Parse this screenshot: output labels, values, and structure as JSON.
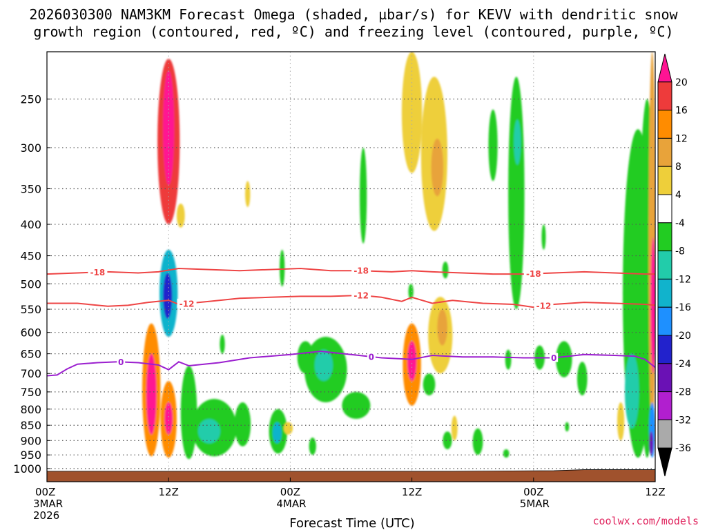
{
  "title_line1": "2026030300 NAM3KM Forecast Omega (shaded, µbar/s) for KEVV with dendritic snow",
  "title_line2": "growth region (contoured, red, ºC) and freezing level (contoured, purple, ºC)",
  "credit": "coolwx.com/models",
  "colors": {
    "dgz": "#ee4444",
    "freezing": "#9b1fcf",
    "terrain": "#a0522d"
  },
  "chart_data": {
    "type": "heatmap",
    "title": "2026030300 NAM3KM Forecast Omega (shaded, µbar/s) for KEVV with dendritic snow growth region (contoured, red, ºC) and freezing level (contoured, purple, ºC)",
    "xlabel": "Forecast Time (UTC)",
    "ylabel": "",
    "x_unit": "forecast hour",
    "xlim": [
      0,
      60
    ],
    "ylim": [
      1050,
      200
    ],
    "y_scale": "log-pressure (hPa)",
    "y_ticks": [
      250,
      300,
      350,
      400,
      450,
      500,
      550,
      600,
      650,
      700,
      750,
      800,
      850,
      900,
      950,
      1000
    ],
    "x_ticks": [
      {
        "hour": 0,
        "label": "00Z",
        "date": "3MAR",
        "year": "2026"
      },
      {
        "hour": 12,
        "label": "12Z",
        "date": "",
        "year": ""
      },
      {
        "hour": 24,
        "label": "00Z",
        "date": "4MAR",
        "year": ""
      },
      {
        "hour": 36,
        "label": "12Z",
        "date": "",
        "year": ""
      },
      {
        "hour": 48,
        "label": "00Z",
        "date": "5MAR",
        "year": ""
      },
      {
        "hour": 60,
        "label": "12Z",
        "date": "",
        "year": ""
      }
    ],
    "grid": true,
    "colorbar": {
      "position": "right",
      "labels": [
        "20",
        "16",
        "12",
        "8",
        "4",
        "-4",
        "-8",
        "-12",
        "-16",
        "-20",
        "-24",
        "-28",
        "-32",
        "-36"
      ],
      "colors": [
        "#ff1493",
        "#ee3b3b",
        "#ff8c00",
        "#e8a33a",
        "#eecf3a",
        "#ffffff",
        "#22cc22",
        "#22ccaa",
        "#11b3cc",
        "#1e90ff",
        "#2222cc",
        "#6a11b5",
        "#b11fcf",
        "#aaaaaa",
        "#000000"
      ]
    },
    "contours": [
      {
        "label": "-18",
        "color": "#ee4444",
        "kind": "dendritic",
        "points": [
          [
            0,
            482
          ],
          [
            3,
            480
          ],
          [
            6,
            478
          ],
          [
            9,
            480
          ],
          [
            11,
            478
          ],
          [
            13,
            472
          ],
          [
            16,
            474
          ],
          [
            19,
            476
          ],
          [
            22,
            474
          ],
          [
            25,
            472
          ],
          [
            28,
            476
          ],
          [
            31,
            476
          ],
          [
            34,
            478
          ],
          [
            36,
            476
          ],
          [
            38,
            478
          ],
          [
            41,
            480
          ],
          [
            44,
            482
          ],
          [
            47,
            482
          ],
          [
            50,
            480
          ],
          [
            53,
            478
          ],
          [
            56,
            480
          ],
          [
            59,
            482
          ],
          [
            60,
            482
          ]
        ],
        "label_hours": [
          5,
          31,
          48
        ]
      },
      {
        "label": "-12",
        "color": "#ee4444",
        "kind": "dendritic",
        "points": [
          [
            0,
            538
          ],
          [
            3,
            538
          ],
          [
            6,
            544
          ],
          [
            8,
            542
          ],
          [
            10,
            536
          ],
          [
            12,
            532
          ],
          [
            13,
            540
          ],
          [
            16,
            534
          ],
          [
            19,
            528
          ],
          [
            22,
            526
          ],
          [
            25,
            524
          ],
          [
            28,
            524
          ],
          [
            31,
            522
          ],
          [
            33,
            526
          ],
          [
            35,
            534
          ],
          [
            36,
            526
          ],
          [
            38,
            538
          ],
          [
            40,
            532
          ],
          [
            43,
            538
          ],
          [
            46,
            540
          ],
          [
            48,
            546
          ],
          [
            50,
            540
          ],
          [
            53,
            536
          ],
          [
            56,
            538
          ],
          [
            59,
            540
          ],
          [
            60,
            542
          ]
        ],
        "label_hours": [
          13.8,
          31,
          49
        ]
      },
      {
        "label": "0",
        "color": "#9b1fcf",
        "kind": "freezing",
        "points": [
          [
            0,
            706
          ],
          [
            1,
            704
          ],
          [
            2,
            688
          ],
          [
            3,
            676
          ],
          [
            5,
            672
          ],
          [
            7,
            670
          ],
          [
            9,
            672
          ],
          [
            11,
            678
          ],
          [
            12,
            690
          ],
          [
            13,
            670
          ],
          [
            14,
            680
          ],
          [
            17,
            672
          ],
          [
            20,
            660
          ],
          [
            24,
            652
          ],
          [
            27,
            644
          ],
          [
            30,
            652
          ],
          [
            33,
            660
          ],
          [
            36,
            664
          ],
          [
            38,
            654
          ],
          [
            41,
            658
          ],
          [
            44,
            658
          ],
          [
            47,
            660
          ],
          [
            50,
            660
          ],
          [
            53,
            652
          ],
          [
            56,
            654
          ],
          [
            58,
            656
          ],
          [
            59,
            664
          ],
          [
            60,
            684
          ]
        ],
        "label_hours": [
          7.3,
          32,
          50
        ]
      }
    ],
    "omega_blobs": [
      {
        "h": 12,
        "p1": 215,
        "p2": 400,
        "w": 1.1,
        "v": 16
      },
      {
        "h": 12,
        "p1": 225,
        "p2": 345,
        "w": 0.55,
        "v": 20
      },
      {
        "h": 13.2,
        "p1": 370,
        "p2": 405,
        "w": 0.4,
        "v": 4
      },
      {
        "h": 12,
        "p1": 440,
        "p2": 610,
        "w": 0.9,
        "v": -16
      },
      {
        "h": 11.9,
        "p1": 480,
        "p2": 570,
        "w": 0.45,
        "v": -24
      },
      {
        "h": 10.3,
        "p1": 580,
        "p2": 955,
        "w": 0.9,
        "v": 12
      },
      {
        "h": 10.3,
        "p1": 650,
        "p2": 880,
        "w": 0.5,
        "v": 20
      },
      {
        "h": 12,
        "p1": 720,
        "p2": 960,
        "w": 0.8,
        "v": 12
      },
      {
        "h": 12,
        "p1": 780,
        "p2": 880,
        "w": 0.4,
        "v": 20
      },
      {
        "h": 14,
        "p1": 680,
        "p2": 965,
        "w": 0.8,
        "v": -8
      },
      {
        "h": 16.5,
        "p1": 770,
        "p2": 955,
        "w": 2.2,
        "v": -8
      },
      {
        "h": 16,
        "p1": 830,
        "p2": 910,
        "w": 1.1,
        "v": -12
      },
      {
        "h": 19.3,
        "p1": 780,
        "p2": 920,
        "w": 0.8,
        "v": -8
      },
      {
        "h": 22.8,
        "p1": 800,
        "p2": 945,
        "w": 0.9,
        "v": -8
      },
      {
        "h": 22.7,
        "p1": 840,
        "p2": 910,
        "w": 0.45,
        "v": -16
      },
      {
        "h": 23.8,
        "p1": 840,
        "p2": 880,
        "w": 0.45,
        "v": 4
      },
      {
        "h": 26.2,
        "p1": 890,
        "p2": 950,
        "w": 0.35,
        "v": -8
      },
      {
        "h": 25.5,
        "p1": 620,
        "p2": 700,
        "w": 0.8,
        "v": -8
      },
      {
        "h": 27.5,
        "p1": 610,
        "p2": 780,
        "w": 2.1,
        "v": -8
      },
      {
        "h": 27.3,
        "p1": 640,
        "p2": 720,
        "w": 0.9,
        "v": -12
      },
      {
        "h": 30.5,
        "p1": 750,
        "p2": 830,
        "w": 1.4,
        "v": -8
      },
      {
        "h": 23.2,
        "p1": 440,
        "p2": 505,
        "w": 0.25,
        "v": -8
      },
      {
        "h": 17.3,
        "p1": 605,
        "p2": 650,
        "w": 0.25,
        "v": -8
      },
      {
        "h": 19.8,
        "p1": 340,
        "p2": 375,
        "w": 0.25,
        "v": 4
      },
      {
        "h": 31.2,
        "p1": 300,
        "p2": 430,
        "w": 0.35,
        "v": -8
      },
      {
        "h": 36.0,
        "p1": 200,
        "p2": 330,
        "w": 1.0,
        "v": 4
      },
      {
        "h": 38.2,
        "p1": 230,
        "p2": 410,
        "w": 1.3,
        "v": 4
      },
      {
        "h": 38.5,
        "p1": 290,
        "p2": 360,
        "w": 0.6,
        "v": 8
      },
      {
        "h": 36,
        "p1": 580,
        "p2": 790,
        "w": 0.9,
        "v": 12
      },
      {
        "h": 36,
        "p1": 620,
        "p2": 720,
        "w": 0.45,
        "v": 20
      },
      {
        "h": 38.8,
        "p1": 525,
        "p2": 700,
        "w": 1.2,
        "v": 4
      },
      {
        "h": 39.0,
        "p1": 550,
        "p2": 630,
        "w": 0.5,
        "v": 8
      },
      {
        "h": 40.2,
        "p1": 820,
        "p2": 900,
        "w": 0.3,
        "v": 4
      },
      {
        "h": 37.7,
        "p1": 700,
        "p2": 760,
        "w": 0.6,
        "v": -8
      },
      {
        "h": 39.5,
        "p1": 870,
        "p2": 930,
        "w": 0.45,
        "v": -8
      },
      {
        "h": 39.3,
        "p1": 460,
        "p2": 490,
        "w": 0.3,
        "v": -8
      },
      {
        "h": 35.9,
        "p1": 500,
        "p2": 530,
        "w": 0.25,
        "v": -8
      },
      {
        "h": 46.3,
        "p1": 230,
        "p2": 550,
        "w": 0.8,
        "v": -8
      },
      {
        "h": 46.4,
        "p1": 270,
        "p2": 320,
        "w": 0.35,
        "v": -12
      },
      {
        "h": 44.0,
        "p1": 260,
        "p2": 340,
        "w": 0.45,
        "v": -8
      },
      {
        "h": 49.0,
        "p1": 400,
        "p2": 440,
        "w": 0.2,
        "v": -8
      },
      {
        "h": 45.5,
        "p1": 640,
        "p2": 690,
        "w": 0.3,
        "v": -8
      },
      {
        "h": 48.6,
        "p1": 630,
        "p2": 690,
        "w": 0.5,
        "v": -8
      },
      {
        "h": 51.0,
        "p1": 620,
        "p2": 710,
        "w": 0.8,
        "v": -8
      },
      {
        "h": 52.8,
        "p1": 670,
        "p2": 760,
        "w": 0.5,
        "v": -8
      },
      {
        "h": 45.3,
        "p1": 930,
        "p2": 960,
        "w": 0.3,
        "v": -8
      },
      {
        "h": 42.5,
        "p1": 860,
        "p2": 950,
        "w": 0.5,
        "v": -8
      },
      {
        "h": 51.3,
        "p1": 840,
        "p2": 870,
        "w": 0.2,
        "v": -8
      },
      {
        "h": 58.3,
        "p1": 280,
        "p2": 960,
        "w": 1.5,
        "v": -8
      },
      {
        "h": 57.7,
        "p1": 650,
        "p2": 860,
        "w": 0.7,
        "v": -12
      },
      {
        "h": 59.2,
        "p1": 250,
        "p2": 960,
        "w": 0.8,
        "v": -8
      },
      {
        "h": 59.7,
        "p1": 200,
        "p2": 900,
        "w": 0.35,
        "v": 8
      },
      {
        "h": 59.8,
        "p1": 420,
        "p2": 700,
        "w": 0.25,
        "v": 20
      },
      {
        "h": 59.7,
        "p1": 780,
        "p2": 960,
        "w": 0.3,
        "v": -20
      },
      {
        "h": 59.6,
        "p1": 870,
        "p2": 950,
        "w": 0.2,
        "v": -28
      },
      {
        "h": 56.6,
        "p1": 780,
        "p2": 900,
        "w": 0.35,
        "v": 4
      }
    ],
    "terrain": [
      [
        0,
        1050
      ],
      [
        0,
        1010
      ],
      [
        20,
        1010
      ],
      [
        40,
        1010
      ],
      [
        50,
        1008
      ],
      [
        53,
        1004
      ],
      [
        60,
        1004
      ],
      [
        60,
        1050
      ]
    ]
  }
}
